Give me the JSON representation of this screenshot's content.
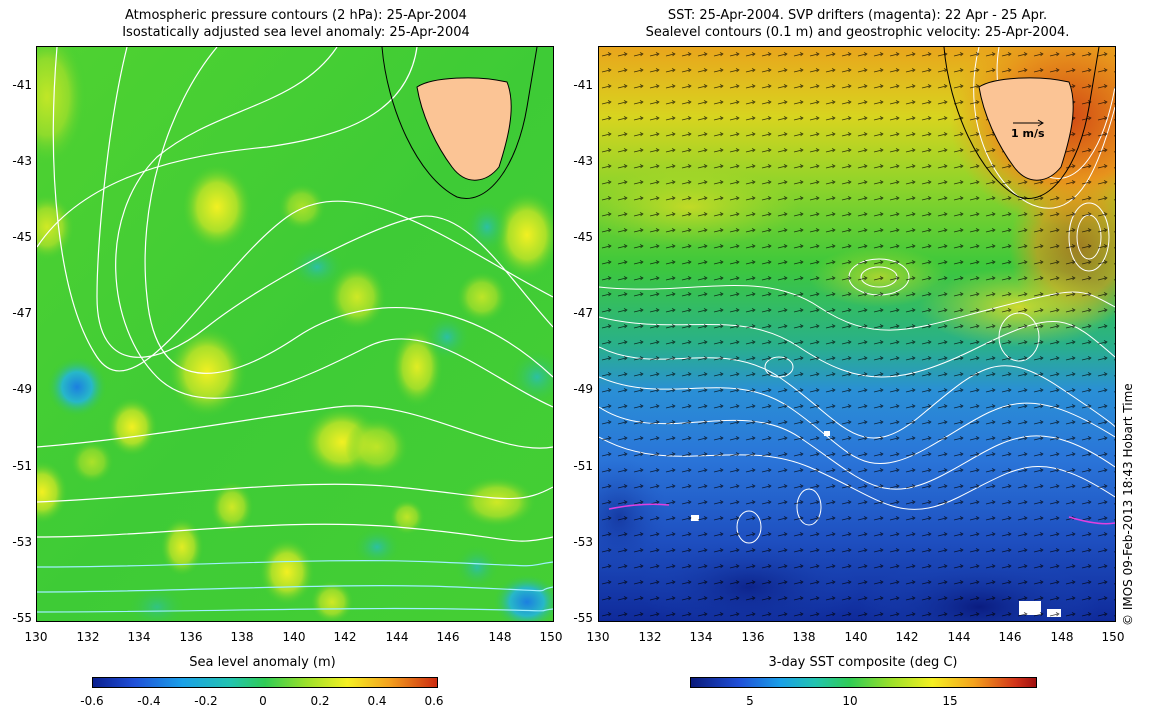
{
  "left_panel": {
    "title_line1": "Atmospheric pressure contours (2 hPa): 25-Apr-2004",
    "title_line2": "Isostatically adjusted sea level anomaly: 25-Apr-2004",
    "colorbar_label": "Sea level anomaly (m)",
    "colorbar_ticks": [
      "-0.6",
      "-0.4",
      "-0.2",
      "0",
      "0.2",
      "0.4",
      "0.6"
    ],
    "colorbar_range": [
      -0.6,
      0.6
    ]
  },
  "right_panel": {
    "title_line1": "SST: 25-Apr-2004. SVP drifters (magenta): 22 Apr - 25 Apr.",
    "title_line2": "Sealevel contours (0.1 m) and geostrophic velocity: 25-Apr-2004.",
    "colorbar_label": "3-day SST composite (deg C)",
    "colorbar_ticks": [
      "5",
      "10",
      "15"
    ],
    "colorbar_range": [
      2.5,
      19
    ],
    "scale_arrow_label": "1 m/s"
  },
  "axes": {
    "lat_ticks": [
      "-41",
      "-43",
      "-45",
      "-47",
      "-49",
      "-51",
      "-53",
      "-55"
    ],
    "lon_ticks": [
      "130",
      "132",
      "134",
      "136",
      "138",
      "140",
      "142",
      "144",
      "146",
      "148",
      "150"
    ],
    "lat_range": [
      -55,
      -40.2
    ],
    "lon_range": [
      130,
      150
    ]
  },
  "credit": "© IMOS 09-Feb-2013 18:43 Hobart Time",
  "colors": {
    "land": "#fbc495",
    "left_background": "#3dcc33",
    "contour": "#ffffff",
    "drifter": "#e040e0"
  },
  "icons": {
    "land": "tasmania-landmass"
  }
}
